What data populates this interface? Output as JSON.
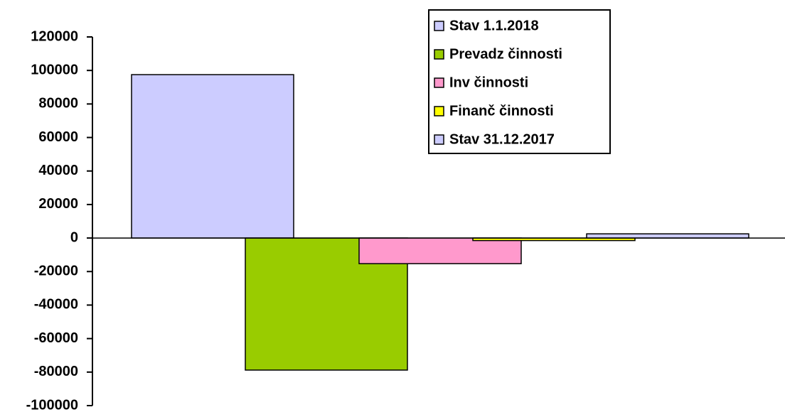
{
  "chart_data": {
    "type": "bar",
    "categories": [
      null
    ],
    "series": [
      {
        "name": "Stav 1.1.2018",
        "color": "#ccccff",
        "values": [
          97500
        ]
      },
      {
        "name": "Prevadz činnosti",
        "color": "#99cc00",
        "values": [
          -78800
        ]
      },
      {
        "name": "Inv činnosti",
        "color": "#ff99cc",
        "values": [
          -15300
        ]
      },
      {
        "name": "Finanč činnosti",
        "color": "#ffff00",
        "values": [
          -1500
        ]
      },
      {
        "name": "Stav 31.12.2017",
        "color": "#ccccff",
        "values": [
          2500
        ]
      }
    ],
    "ylim": [
      -100000,
      120000
    ],
    "yticks": [
      -100000,
      -80000,
      -60000,
      -40000,
      -20000,
      0,
      20000,
      40000,
      60000,
      80000,
      100000,
      120000
    ],
    "grid": false,
    "legend": "top-right"
  }
}
